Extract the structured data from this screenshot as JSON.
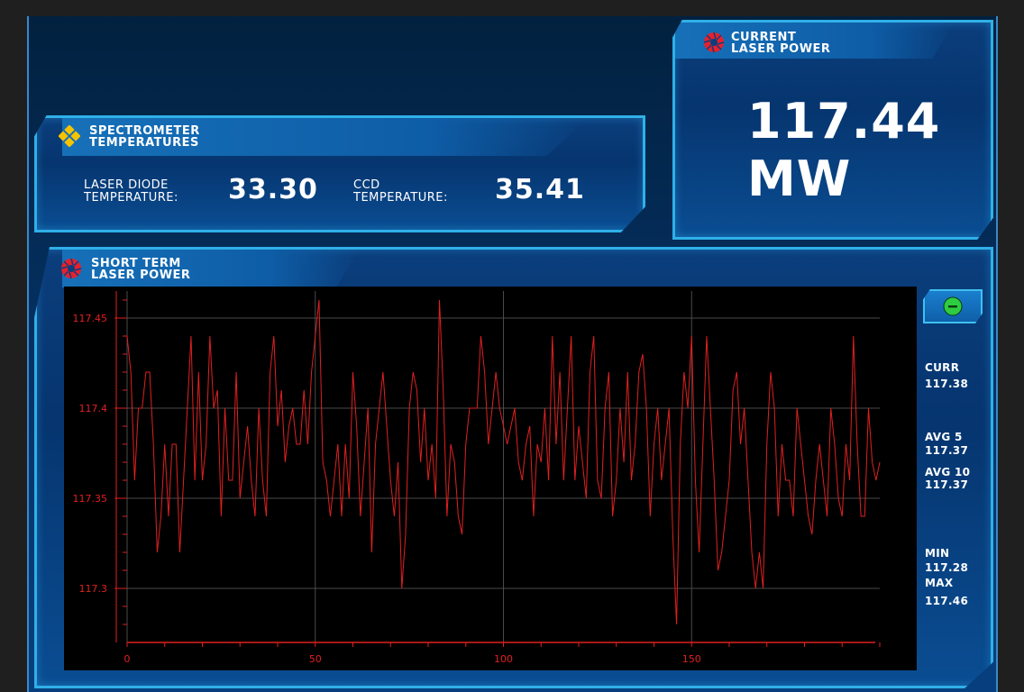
{
  "spectrometer": {
    "title_line1": "SPECTROMETER",
    "title_line2": "TEMPERATURES",
    "laser_diode_label_line1": "LASER DIODE",
    "laser_diode_label_line2": "TEMPERATURE:",
    "laser_diode_value": "33.30",
    "ccd_label_line1": "CCD",
    "ccd_label_line2": "TEMPERATURE:",
    "ccd_value": "35.41"
  },
  "current_power": {
    "title_line1": "CURRENT",
    "title_line2": "LASER POWER",
    "value": "117.44",
    "unit": "MW"
  },
  "short_term": {
    "title_line1": "SHORT TERM",
    "title_line2": "LASER POWER"
  },
  "stats": {
    "curr_label": "CURR",
    "curr_value": "117.38",
    "avg5_label": "AVG 5",
    "avg5_value": "117.37",
    "avg10_label": "AVG 10",
    "avg10_value": "117.37",
    "min_label": "MIN",
    "min_value": "117.28",
    "max_label": "MAX",
    "max_value": "117.46"
  },
  "colors": {
    "accent": "#2fb0e8",
    "plot_line": "#e02020",
    "plot_bg": "#000000",
    "collapse_button": "#2ecc40"
  },
  "icons": {
    "spectrometer": "diamond-cluster-icon",
    "laser": "aperture-icon",
    "collapse": "minus-icon"
  },
  "chart_data": {
    "type": "line",
    "xlim": [
      0,
      200
    ],
    "ylim": [
      117.27,
      117.465
    ],
    "x_ticks": [
      0,
      50,
      100,
      150
    ],
    "y_ticks": [
      117.3,
      117.35,
      117.4,
      117.45
    ],
    "x_tick_labels": [
      "0",
      "50",
      "100",
      "150"
    ],
    "y_tick_labels": [
      "117.3",
      "117.35",
      "117.4",
      "117.45"
    ],
    "grid": true,
    "series": [
      {
        "values": [
          117.44,
          117.42,
          117.36,
          117.4,
          117.4,
          117.42,
          117.42,
          117.38,
          117.32,
          117.34,
          117.38,
          117.34,
          117.38,
          117.38,
          117.32,
          117.36,
          117.4,
          117.44,
          117.36,
          117.42,
          117.36,
          117.38,
          117.44,
          117.4,
          117.41,
          117.34,
          117.4,
          117.36,
          117.36,
          117.42,
          117.35,
          117.37,
          117.39,
          117.36,
          117.34,
          117.4,
          117.36,
          117.34,
          117.42,
          117.44,
          117.39,
          117.41,
          117.37,
          117.39,
          117.4,
          117.38,
          117.38,
          117.41,
          117.38,
          117.42,
          117.44,
          117.46,
          117.37,
          117.36,
          117.34,
          117.36,
          117.38,
          117.34,
          117.38,
          117.35,
          117.42,
          117.39,
          117.34,
          117.37,
          117.4,
          117.32,
          117.38,
          117.4,
          117.42,
          117.39,
          117.36,
          117.34,
          117.37,
          117.3,
          117.33,
          117.4,
          117.42,
          117.41,
          117.37,
          117.4,
          117.36,
          117.38,
          117.35,
          117.46,
          117.41,
          117.34,
          117.38,
          117.37,
          117.34,
          117.33,
          117.38,
          117.4,
          117.4,
          117.4,
          117.44,
          117.42,
          117.38,
          117.4,
          117.42,
          117.4,
          117.39,
          117.38,
          117.39,
          117.4,
          117.37,
          117.36,
          117.38,
          117.39,
          117.34,
          117.38,
          117.37,
          117.4,
          117.36,
          117.44,
          117.38,
          117.42,
          117.36,
          117.4,
          117.44,
          117.36,
          117.39,
          117.37,
          117.35,
          117.42,
          117.44,
          117.36,
          117.35,
          117.4,
          117.42,
          117.34,
          117.36,
          117.4,
          117.37,
          117.42,
          117.36,
          117.38,
          117.42,
          117.43,
          117.4,
          117.34,
          117.38,
          117.4,
          117.36,
          117.38,
          117.4,
          117.33,
          117.28,
          117.38,
          117.42,
          117.4,
          117.44,
          117.36,
          117.32,
          117.38,
          117.44,
          117.4,
          117.36,
          117.31,
          117.32,
          117.34,
          117.36,
          117.41,
          117.42,
          117.38,
          117.4,
          117.36,
          117.32,
          117.3,
          117.32,
          117.3,
          117.38,
          117.42,
          117.4,
          117.34,
          117.38,
          117.36,
          117.36,
          117.34,
          117.4,
          117.38,
          117.36,
          117.34,
          117.33,
          117.36,
          117.38,
          117.36,
          117.34,
          117.4,
          117.38,
          117.35,
          117.34,
          117.38,
          117.36,
          117.44,
          117.38,
          117.34,
          117.34,
          117.4,
          117.37,
          117.36,
          117.37
        ]
      }
    ]
  }
}
